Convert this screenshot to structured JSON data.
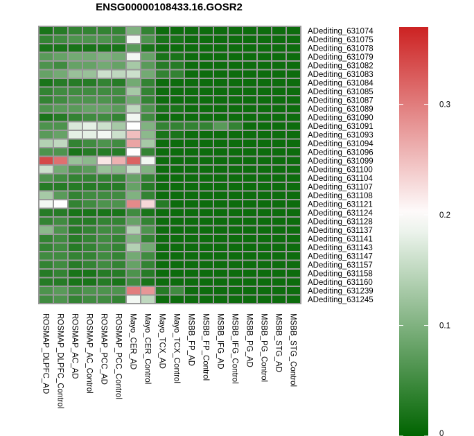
{
  "chart_data": {
    "type": "heatmap",
    "title": "ENSG00000108433.16.GOSR2",
    "columns": [
      "ROSMAP_DLPFC_AD",
      "ROSMAP_DLPFC_Control",
      "ROSMAP_AC_AD",
      "ROSMAP_AC_Control",
      "ROSMAP_PCC_AD",
      "ROSMAP_PCC_Control",
      "Mayo_CER_AD",
      "Mayo_CER_Control",
      "Mayo_TCX_AD",
      "Mayo_TCX_Control",
      "MSBB_FP_AD",
      "MSBB_FP_Control",
      "MSBB_IFG_AD",
      "MSBB_IFG_Control",
      "MSBB_PG_AD",
      "MSBB_PG_Control",
      "MSBB_STG_AD",
      "MSBB_STG_Control"
    ],
    "rows": [
      "ADediting_631074",
      "ADediting_631075",
      "ADediting_631078",
      "ADediting_631079",
      "ADediting_631082",
      "ADediting_631083",
      "ADediting_631084",
      "ADediting_631085",
      "ADediting_631087",
      "ADediting_631089",
      "ADediting_631090",
      "ADediting_631091",
      "ADediting_631093",
      "ADediting_631094",
      "ADediting_631096",
      "ADediting_631099",
      "ADediting_631100",
      "ADediting_631104",
      "ADediting_631107",
      "ADediting_631108",
      "ADediting_631121",
      "ADediting_631124",
      "ADediting_631128",
      "ADediting_631137",
      "ADediting_631141",
      "ADediting_631143",
      "ADediting_631147",
      "ADediting_631157",
      "ADediting_631158",
      "ADediting_631160",
      "ADediting_631239",
      "ADediting_631245"
    ],
    "values": [
      [
        0.02,
        0.03,
        0.04,
        0.04,
        0.04,
        0.04,
        0.1,
        0.04,
        0.01,
        0.01,
        0.01,
        0.01,
        0.01,
        0.01,
        0.01,
        0.01,
        0.01,
        0.01
      ],
      [
        0.04,
        0.05,
        0.06,
        0.06,
        0.06,
        0.05,
        0.19,
        0.06,
        0.02,
        0.02,
        0.01,
        0.01,
        0.01,
        0.01,
        0.01,
        0.01,
        0.01,
        0.01
      ],
      [
        0.02,
        0.02,
        0.02,
        0.02,
        0.02,
        0.02,
        0.07,
        0.02,
        0.01,
        0.01,
        0.01,
        0.01,
        0.01,
        0.01,
        0.01,
        0.01,
        0.01,
        0.01
      ],
      [
        0.07,
        0.08,
        0.09,
        0.09,
        0.1,
        0.09,
        0.19,
        0.08,
        0.02,
        0.02,
        0.01,
        0.01,
        0.01,
        0.01,
        0.01,
        0.01,
        0.01,
        0.01
      ],
      [
        0.06,
        0.05,
        0.08,
        0.08,
        0.09,
        0.08,
        0.13,
        0.07,
        0.03,
        0.03,
        0.01,
        0.01,
        0.01,
        0.01,
        0.01,
        0.01,
        0.01,
        0.01
      ],
      [
        0.08,
        0.09,
        0.12,
        0.12,
        0.16,
        0.15,
        0.16,
        0.09,
        0.04,
        0.04,
        0.01,
        0.01,
        0.01,
        0.01,
        0.01,
        0.01,
        0.01,
        0.01
      ],
      [
        0.02,
        0.03,
        0.03,
        0.03,
        0.04,
        0.03,
        0.09,
        0.04,
        0.01,
        0.01,
        0.01,
        0.01,
        0.01,
        0.01,
        0.01,
        0.01,
        0.01,
        0.01
      ],
      [
        0.04,
        0.05,
        0.05,
        0.05,
        0.05,
        0.05,
        0.13,
        0.04,
        0.01,
        0.01,
        0.01,
        0.01,
        0.01,
        0.01,
        0.01,
        0.01,
        0.01,
        0.01
      ],
      [
        0.04,
        0.05,
        0.06,
        0.06,
        0.06,
        0.05,
        0.09,
        0.04,
        0.01,
        0.01,
        0.01,
        0.01,
        0.01,
        0.01,
        0.01,
        0.01,
        0.01,
        0.01
      ],
      [
        0.06,
        0.07,
        0.07,
        0.08,
        0.08,
        0.07,
        0.15,
        0.06,
        0.02,
        0.02,
        0.01,
        0.01,
        0.01,
        0.01,
        0.01,
        0.01,
        0.01,
        0.01
      ],
      [
        0.02,
        0.03,
        0.04,
        0.05,
        0.05,
        0.04,
        0.19,
        0.05,
        0.01,
        0.01,
        0.01,
        0.01,
        0.01,
        0.01,
        0.01,
        0.01,
        0.01,
        0.01
      ],
      [
        0.06,
        0.06,
        0.17,
        0.18,
        0.16,
        0.13,
        0.2,
        0.1,
        0.04,
        0.04,
        0.04,
        0.04,
        0.07,
        0.04,
        0.01,
        0.01,
        0.01,
        0.01
      ],
      [
        0.07,
        0.08,
        0.18,
        0.18,
        0.19,
        0.16,
        0.25,
        0.11,
        0.02,
        0.02,
        0.01,
        0.01,
        0.01,
        0.01,
        0.01,
        0.01,
        0.01,
        0.01
      ],
      [
        0.14,
        0.15,
        0.04,
        0.05,
        0.06,
        0.05,
        0.27,
        0.13,
        0.01,
        0.01,
        0.01,
        0.01,
        0.01,
        0.01,
        0.01,
        0.01,
        0.01,
        0.01
      ],
      [
        0.06,
        0.06,
        0.02,
        0.03,
        0.03,
        0.03,
        0.2,
        0.04,
        0.01,
        0.01,
        0.01,
        0.01,
        0.01,
        0.01,
        0.01,
        0.01,
        0.01,
        0.01
      ],
      [
        0.34,
        0.31,
        0.12,
        0.11,
        0.22,
        0.26,
        0.32,
        0.19,
        0.01,
        0.01,
        0.01,
        0.01,
        0.01,
        0.01,
        0.01,
        0.01,
        0.01,
        0.01
      ],
      [
        0.16,
        0.09,
        0.06,
        0.07,
        0.12,
        0.11,
        0.16,
        0.1,
        0.01,
        0.01,
        0.01,
        0.01,
        0.01,
        0.01,
        0.01,
        0.01,
        0.01,
        0.01
      ],
      [
        0.06,
        0.05,
        0.04,
        0.04,
        0.04,
        0.04,
        0.08,
        0.04,
        0.01,
        0.01,
        0.01,
        0.01,
        0.01,
        0.01,
        0.01,
        0.01,
        0.01,
        0.01
      ],
      [
        0.03,
        0.03,
        0.03,
        0.03,
        0.03,
        0.03,
        0.08,
        0.03,
        0.01,
        0.01,
        0.01,
        0.01,
        0.01,
        0.01,
        0.01,
        0.01,
        0.01,
        0.01
      ],
      [
        0.13,
        0.07,
        0.04,
        0.05,
        0.05,
        0.05,
        0.1,
        0.04,
        0.01,
        0.01,
        0.01,
        0.01,
        0.01,
        0.01,
        0.01,
        0.01,
        0.01,
        0.01
      ],
      [
        0.19,
        0.2,
        0.04,
        0.05,
        0.06,
        0.06,
        0.29,
        0.23,
        0.03,
        0.01,
        0.01,
        0.01,
        0.01,
        0.01,
        0.01,
        0.01,
        0.01,
        0.01
      ],
      [
        0.03,
        0.03,
        0.02,
        0.02,
        0.02,
        0.02,
        0.05,
        0.02,
        0.01,
        0.01,
        0.01,
        0.01,
        0.01,
        0.01,
        0.01,
        0.01,
        0.01,
        0.01
      ],
      [
        0.04,
        0.05,
        0.03,
        0.03,
        0.04,
        0.04,
        0.08,
        0.04,
        0.01,
        0.01,
        0.01,
        0.01,
        0.01,
        0.01,
        0.01,
        0.01,
        0.01,
        0.01
      ],
      [
        0.11,
        0.06,
        0.03,
        0.04,
        0.05,
        0.05,
        0.14,
        0.06,
        0.01,
        0.01,
        0.01,
        0.01,
        0.01,
        0.01,
        0.01,
        0.01,
        0.01,
        0.01
      ],
      [
        0.04,
        0.05,
        0.03,
        0.04,
        0.05,
        0.04,
        0.1,
        0.04,
        0.01,
        0.01,
        0.01,
        0.01,
        0.01,
        0.01,
        0.01,
        0.01,
        0.01,
        0.01
      ],
      [
        0.04,
        0.05,
        0.03,
        0.04,
        0.05,
        0.04,
        0.14,
        0.09,
        0.01,
        0.01,
        0.01,
        0.01,
        0.01,
        0.01,
        0.01,
        0.01,
        0.01,
        0.01
      ],
      [
        0.05,
        0.05,
        0.04,
        0.04,
        0.05,
        0.04,
        0.09,
        0.05,
        0.01,
        0.01,
        0.01,
        0.01,
        0.01,
        0.01,
        0.01,
        0.01,
        0.01,
        0.01
      ],
      [
        0.04,
        0.05,
        0.03,
        0.04,
        0.05,
        0.04,
        0.08,
        0.04,
        0.01,
        0.01,
        0.01,
        0.01,
        0.01,
        0.01,
        0.01,
        0.01,
        0.01,
        0.01
      ],
      [
        0.03,
        0.04,
        0.02,
        0.02,
        0.03,
        0.03,
        0.06,
        0.03,
        0.01,
        0.01,
        0.01,
        0.01,
        0.01,
        0.01,
        0.01,
        0.01,
        0.01,
        0.01
      ],
      [
        0.03,
        0.03,
        0.02,
        0.02,
        0.03,
        0.02,
        0.05,
        0.02,
        0.01,
        0.01,
        0.01,
        0.01,
        0.01,
        0.01,
        0.01,
        0.01,
        0.01,
        0.01
      ],
      [
        0.06,
        0.07,
        0.05,
        0.06,
        0.06,
        0.06,
        0.3,
        0.28,
        0.03,
        0.05,
        0.01,
        0.01,
        0.01,
        0.01,
        0.01,
        0.01,
        0.01,
        0.01
      ],
      [
        0.05,
        0.06,
        0.04,
        0.05,
        0.05,
        0.04,
        0.19,
        0.15,
        0.01,
        0.01,
        0.01,
        0.01,
        0.01,
        0.01,
        0.01,
        0.01,
        0.01,
        0.01
      ]
    ],
    "color_scale": {
      "min": 0,
      "mid": 0.2,
      "max": 0.37,
      "low_color": "#006400",
      "mid_color": "#ffffff",
      "high_color": "#cc2222"
    },
    "legend": {
      "ticks": [
        0,
        0.1,
        0.2,
        0.3
      ],
      "tick_labels": [
        "0",
        "0.1",
        "0.2",
        "0.3"
      ],
      "position": "right"
    },
    "grid_color": "#999999"
  }
}
